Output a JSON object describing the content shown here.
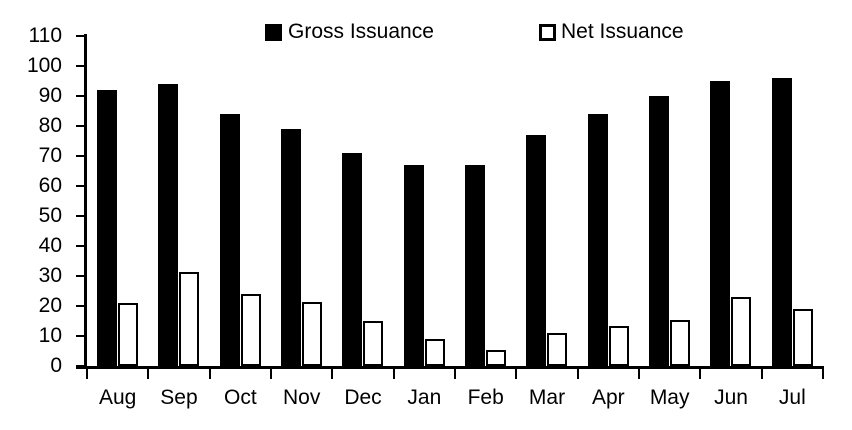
{
  "legend": {
    "gross_label": "Gross Issuance",
    "net_label": "Net Issuance"
  },
  "colors": {
    "gross_fill": "#000000",
    "net_fill": "#ffffff",
    "net_stroke": "#000000",
    "axis": "#000000",
    "background": "#ffffff"
  },
  "chart_data": {
    "type": "bar",
    "title": "",
    "xlabel": "",
    "ylabel": "",
    "categories": [
      "Aug",
      "Sep",
      "Oct",
      "Nov",
      "Dec",
      "Jan",
      "Feb",
      "Mar",
      "Apr",
      "May",
      "Jun",
      "Jul"
    ],
    "series": [
      {
        "name": "Gross Issuance",
        "values": [
          92,
          94,
          84,
          79,
          71,
          67,
          67,
          77,
          84,
          90,
          95,
          96
        ]
      },
      {
        "name": "Net Issuance",
        "values": [
          21,
          31.5,
          24,
          21.5,
          15,
          9,
          5.5,
          11,
          13.5,
          15.5,
          23,
          19
        ]
      }
    ],
    "ylim": [
      0,
      110
    ],
    "yticks": [
      0,
      10,
      20,
      30,
      40,
      50,
      60,
      70,
      80,
      90,
      100,
      110
    ],
    "grid": false,
    "legend_position": "top"
  }
}
